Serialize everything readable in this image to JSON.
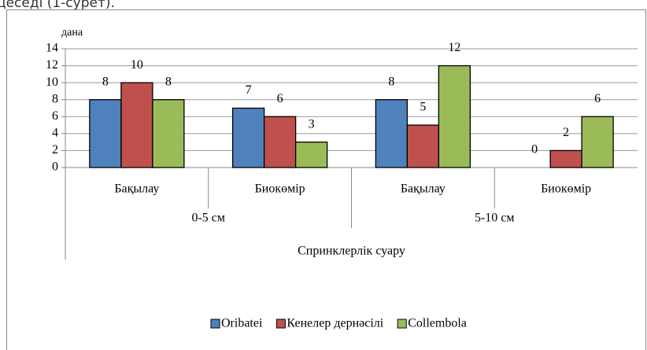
{
  "page_text": "цеседі (1-сурет).",
  "chart_data": {
    "type": "bar",
    "y_label": "дана",
    "categories": [
      "Бақылау",
      "Биокөмір",
      "Бақылау",
      "Биокөмір"
    ],
    "groups": [
      "0-5 см",
      "5-10 см"
    ],
    "supergroup": "Спринклерлік суару",
    "series": [
      {
        "name": "Oribatei",
        "color": "#4f81bd",
        "values": [
          8,
          7,
          8,
          0
        ]
      },
      {
        "name": "Кенелер дернәсілі",
        "color": "#c0504d",
        "values": [
          10,
          6,
          5,
          2
        ]
      },
      {
        "name": "Collembola",
        "color": "#9bbb59",
        "values": [
          8,
          3,
          12,
          6
        ]
      }
    ],
    "ylim": [
      0,
      14
    ],
    "yticks": [
      0,
      2,
      4,
      6,
      8,
      10,
      12,
      14
    ],
    "grid": true,
    "legend": "bottom"
  }
}
